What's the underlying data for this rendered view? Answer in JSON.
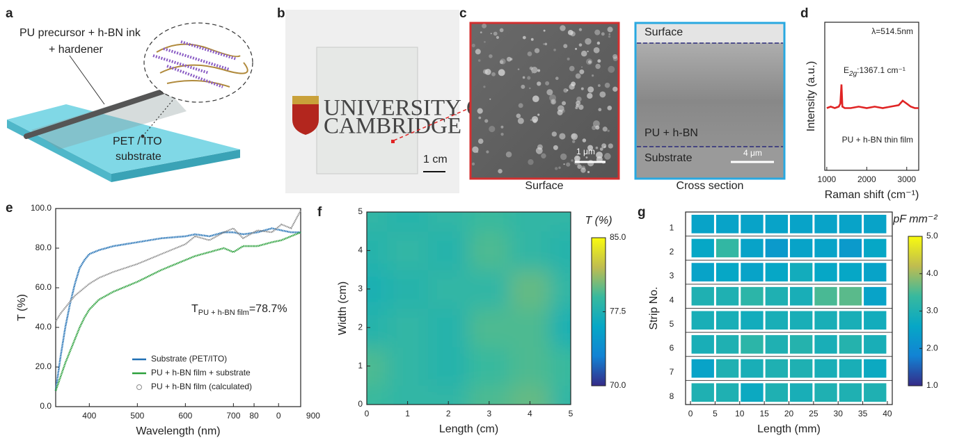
{
  "figure": {
    "panel_labels": [
      "a",
      "b",
      "c",
      "d",
      "e",
      "f",
      "g"
    ],
    "panel_a": {
      "ink_label": "PU precursor + h-BN ink",
      "hardener_label": "+ hardener",
      "substrate_label_1": "PET / ITO",
      "substrate_label_2": "substrate"
    },
    "panel_b": {
      "logo_line_1": "UNIVERSITY OF",
      "logo_line_2": "CAMBRIDGE",
      "scale_label": "1 cm"
    },
    "panel_c": {
      "surface_image": {
        "scale_label": "1 μm",
        "caption": "Surface"
      },
      "cross_section_image": {
        "surface_label": "Surface",
        "film_label": "PU + h-BN",
        "substrate_label": "Substrate",
        "scale_label": "4 μm",
        "caption": "Cross section"
      }
    }
  },
  "chart_data": [
    {
      "type": "line",
      "x_label": "Raman shift (cm⁻¹)",
      "y_label": "Intensity (a.u.)",
      "annotations": {
        "wavelength": "λ=514.5nm",
        "sample": "PU + h-BN thin film"
      },
      "peak_label": {
        "symbol": "E",
        "subscript": "2g",
        "text": ":1367.1 cm⁻¹"
      },
      "x": [
        1000,
        1100,
        1200,
        1300,
        1340,
        1367,
        1390,
        1450,
        1600,
        1800,
        2000,
        2200,
        2400,
        2600,
        2800,
        2900,
        2950,
        3000,
        3100,
        3200,
        3300
      ],
      "series": [
        {
          "color": "#e02424",
          "values": [
            0.42,
            0.43,
            0.42,
            0.43,
            0.45,
            0.58,
            0.43,
            0.42,
            0.42,
            0.43,
            0.42,
            0.43,
            0.42,
            0.43,
            0.44,
            0.47,
            0.46,
            0.45,
            0.43,
            0.42,
            0.42
          ]
        }
      ],
      "xlim": [
        950,
        3300
      ],
      "xticks": [
        1000,
        2000,
        3000
      ],
      "ylim": [
        0,
        1
      ]
    },
    {
      "type": "line",
      "x_label": "Wavelength (nm)",
      "y_label": "T (%)",
      "annotation": {
        "main": "T",
        "subscript": "PU + h-BN film",
        "text": "=78.7%"
      },
      "x": [
        330,
        340,
        350,
        360,
        370,
        380,
        390,
        400,
        420,
        450,
        500,
        550,
        600,
        620,
        650,
        680,
        700,
        720,
        750,
        780,
        800,
        820,
        840
      ],
      "series": [
        {
          "name": "Substrate (PET/ITO)",
          "color": "#1f6fb4",
          "marker": "line",
          "values": [
            8,
            25,
            40,
            52,
            62,
            70,
            74,
            77,
            79,
            81,
            83,
            85,
            86,
            87,
            86,
            88,
            88,
            87,
            88,
            90,
            89,
            88,
            88
          ]
        },
        {
          "name": "PU + h-BN film + substrate",
          "color": "#2ca03c",
          "marker": "line",
          "values": [
            8,
            15,
            22,
            28,
            34,
            40,
            45,
            49,
            54,
            58,
            63,
            69,
            74,
            76,
            78,
            80,
            78,
            81,
            81,
            83,
            84,
            86,
            88
          ]
        },
        {
          "name": "PU + h-BN film (calculated)",
          "color": "#8c8c8c",
          "marker": "circle",
          "values": [
            43,
            47,
            50,
            53,
            56,
            58,
            60,
            62,
            65,
            68,
            72,
            77,
            82,
            86,
            84,
            88,
            90,
            85,
            89,
            88,
            92,
            90,
            99
          ]
        }
      ],
      "xlim": [
        330,
        840
      ],
      "xticks": [
        400,
        500,
        600,
        700,
        {
          "value": 743,
          "label": "80"
        },
        {
          "value": 794,
          "label": "0"
        },
        {
          "value": 866,
          "label": "900"
        }
      ],
      "ylim": [
        0,
        100
      ],
      "yticks": [
        {
          "value": 0,
          "label": "0.0"
        },
        {
          "value": 20,
          "label": "20.0"
        },
        {
          "value": 40,
          "label": "40.0"
        },
        {
          "value": 60,
          "label": "60.0"
        },
        {
          "value": 80,
          "label": "80.0"
        },
        {
          "value": 100,
          "label": "100.0"
        }
      ],
      "legend": "lower right"
    },
    {
      "type": "contour",
      "x_label": "Length (cm)",
      "y_label": "Width (cm)",
      "colorbar_title": "T (%)",
      "x": [
        0,
        1,
        2,
        3,
        4,
        5
      ],
      "y": [
        0,
        1,
        2,
        3,
        4,
        5
      ],
      "z": [
        [
          79,
          78.5,
          78.5,
          79.5,
          80,
          78.5
        ],
        [
          79.5,
          78.5,
          78,
          79,
          79.5,
          79
        ],
        [
          78,
          78.5,
          78,
          79.5,
          79.5,
          77.5
        ],
        [
          77.5,
          78,
          78.5,
          78.5,
          80,
          78.5
        ],
        [
          78,
          78.5,
          78,
          79.5,
          78.5,
          78
        ],
        [
          78.5,
          78,
          78.5,
          79,
          78.5,
          78.5
        ]
      ],
      "xlim": [
        0,
        5
      ],
      "ylim": [
        0,
        5
      ],
      "xticks": [
        0,
        1,
        2,
        3,
        4,
        5
      ],
      "yticks": [
        0,
        1,
        2,
        3,
        4,
        5
      ],
      "clim": [
        70,
        85
      ],
      "cticks": [
        {
          "value": 70,
          "label": "70.0"
        },
        77.5,
        {
          "value": 85,
          "label": "85.0"
        }
      ],
      "colormap": [
        "#352a87",
        "#1283d4",
        "#06a7c6",
        "#38b99e",
        "#bfbc50",
        "#f9fb0e"
      ]
    },
    {
      "type": "heatmap",
      "x_label": "Length (mm)",
      "y_label": "Strip No.",
      "colorbar_title": "pF mm⁻²",
      "categories": [
        "1",
        "2",
        "3",
        "4",
        "5",
        "6",
        "7",
        "8"
      ],
      "bins": [
        0,
        5,
        10,
        15,
        20,
        25,
        30,
        35,
        40
      ],
      "z": [
        [
          2.5,
          2.5,
          2.5,
          2.5,
          2.5,
          2.5,
          2.5,
          2.5
        ],
        [
          2.6,
          3.3,
          2.5,
          2.3,
          2.5,
          2.5,
          2.3,
          2.6
        ],
        [
          2.5,
          2.6,
          2.5,
          2.6,
          2.8,
          2.6,
          2.6,
          2.5
        ],
        [
          3.0,
          3.0,
          3.2,
          3.0,
          2.9,
          3.5,
          3.6,
          2.5
        ],
        [
          2.9,
          2.9,
          2.8,
          2.9,
          2.9,
          2.9,
          2.9,
          2.8
        ],
        [
          2.9,
          3.0,
          3.2,
          3.0,
          3.1,
          2.9,
          3.1,
          2.9
        ],
        [
          2.5,
          3.0,
          2.9,
          3.0,
          3.0,
          2.9,
          2.9,
          2.7
        ],
        [
          3.0,
          3.0,
          2.7,
          3.0,
          2.9,
          3.0,
          3.0,
          3.0
        ]
      ],
      "xlim": [
        -1,
        41
      ],
      "xticks": [
        0,
        5,
        10,
        15,
        20,
        25,
        30,
        35,
        40
      ],
      "clim": [
        1,
        5
      ],
      "cticks": [
        {
          "value": 1,
          "label": "1.0"
        },
        {
          "value": 2,
          "label": "2.0"
        },
        {
          "value": 3,
          "label": "3.0"
        },
        {
          "value": 4,
          "label": "4.0"
        },
        {
          "value": 5,
          "label": "5.0"
        }
      ],
      "colormap": [
        "#352a87",
        "#1283d4",
        "#06a7c6",
        "#38b99e",
        "#bfbc50",
        "#f9fb0e"
      ]
    }
  ]
}
